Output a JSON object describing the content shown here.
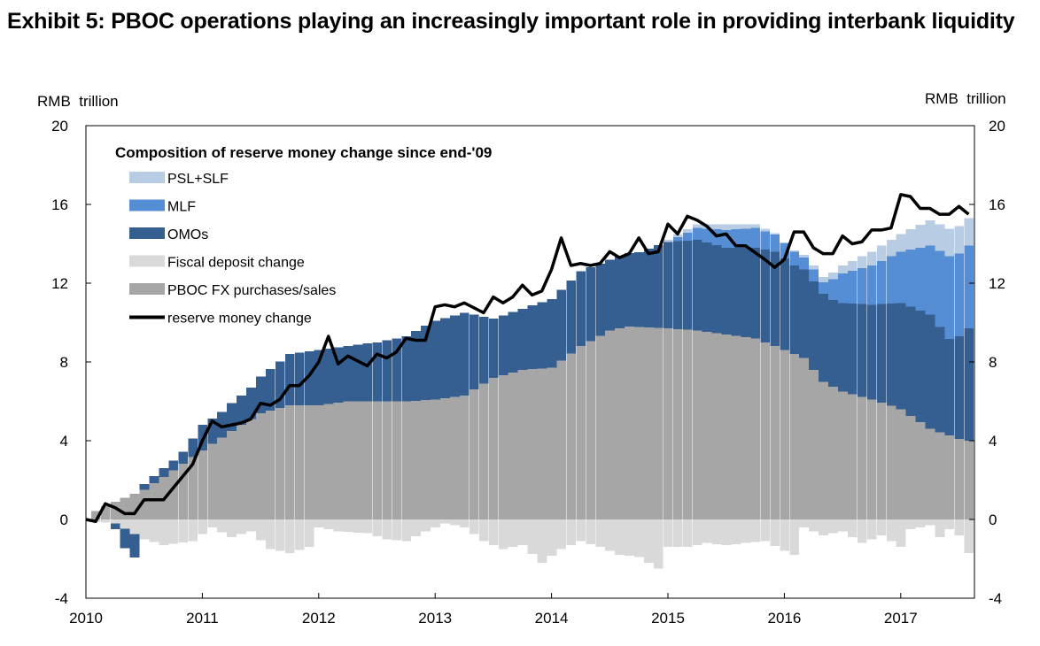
{
  "page": {
    "title": "Exhibit 5: PBOC operations playing an increasingly important role in providing interbank liquidity"
  },
  "chart_data": {
    "type": "bar",
    "stacked": true,
    "y_unit_left": "RMB  trillion",
    "y_unit_right": "RMB  trillion",
    "ylim": [
      -4,
      20
    ],
    "yticks": [
      -4,
      0,
      4,
      8,
      12,
      16,
      20
    ],
    "x_tick_labels": [
      "2010",
      "2011",
      "2012",
      "2013",
      "2014",
      "2015",
      "2016",
      "2017"
    ],
    "x_start": "2010-01",
    "frequency": "monthly",
    "legend_title": "Composition of reserve money change since end-'09",
    "legend_position": "top-left",
    "grid": false,
    "colors": {
      "psl_slf": "#b8cce4",
      "mlf": "#558ed5",
      "omo": "#355e91",
      "fiscal": "#d9d9d9",
      "fx": "#a6a6a6",
      "line": "#000000"
    },
    "legend": [
      {
        "label": "PSL+SLF",
        "key": "psl_slf",
        "kind": "bar"
      },
      {
        "label": "MLF",
        "key": "mlf",
        "kind": "bar"
      },
      {
        "label": "OMOs",
        "key": "omo",
        "kind": "bar"
      },
      {
        "label": "Fiscal deposit change",
        "key": "fiscal",
        "kind": "bar"
      },
      {
        "label": "PBOC FX purchases/sales",
        "key": "fx",
        "kind": "bar"
      },
      {
        "label": "reserve money change",
        "key": "line",
        "kind": "line"
      }
    ],
    "months": 92,
    "kp": {
      "fx": [
        [
          0,
          0.2
        ],
        [
          3,
          0.9
        ],
        [
          6,
          1.5
        ],
        [
          9,
          2.5
        ],
        [
          12,
          3.5
        ],
        [
          15,
          4.5
        ],
        [
          18,
          5.4
        ],
        [
          21,
          5.8
        ],
        [
          24,
          5.8
        ],
        [
          27,
          6.0
        ],
        [
          30,
          6.0
        ],
        [
          33,
          6.0
        ],
        [
          36,
          6.1
        ],
        [
          39,
          6.3
        ],
        [
          42,
          7.2
        ],
        [
          45,
          7.6
        ],
        [
          48,
          7.7
        ],
        [
          51,
          8.8
        ],
        [
          54,
          9.6
        ],
        [
          56,
          9.8
        ],
        [
          60,
          9.7
        ],
        [
          63,
          9.6
        ],
        [
          66,
          9.4
        ],
        [
          69,
          9.2
        ],
        [
          72,
          8.6
        ],
        [
          74,
          8.2
        ],
        [
          76,
          7.0
        ],
        [
          78,
          6.5
        ],
        [
          81,
          6.1
        ],
        [
          84,
          5.6
        ],
        [
          87,
          4.6
        ],
        [
          90,
          4.1
        ],
        [
          91,
          4.0
        ]
      ],
      "omo": [
        [
          0,
          0.0
        ],
        [
          2,
          0.0
        ],
        [
          3,
          -0.3
        ],
        [
          4,
          -1.0
        ],
        [
          5,
          -1.2
        ],
        [
          6,
          0.3
        ],
        [
          9,
          0.5
        ],
        [
          10,
          0.6
        ],
        [
          12,
          1.3
        ],
        [
          14,
          1.3
        ],
        [
          17,
          1.6
        ],
        [
          21,
          2.6
        ],
        [
          24,
          2.8
        ],
        [
          27,
          2.8
        ],
        [
          30,
          3.0
        ],
        [
          33,
          3.3
        ],
        [
          36,
          4.0
        ],
        [
          39,
          4.2
        ],
        [
          42,
          3.0
        ],
        [
          45,
          3.1
        ],
        [
          48,
          3.5
        ],
        [
          51,
          3.8
        ],
        [
          54,
          3.6
        ],
        [
          57,
          3.8
        ],
        [
          60,
          4.4
        ],
        [
          63,
          4.6
        ],
        [
          66,
          4.4
        ],
        [
          69,
          4.6
        ],
        [
          71,
          4.8
        ],
        [
          73,
          4.5
        ],
        [
          75,
          4.5
        ],
        [
          77,
          4.4
        ],
        [
          79,
          4.6
        ],
        [
          81,
          4.8
        ],
        [
          84,
          5.4
        ],
        [
          87,
          5.8
        ],
        [
          89,
          4.9
        ],
        [
          90,
          5.2
        ],
        [
          91,
          5.7
        ]
      ],
      "mlf": [
        [
          0,
          0
        ],
        [
          60,
          0
        ],
        [
          61,
          0.2
        ],
        [
          63,
          0.6
        ],
        [
          66,
          0.9
        ],
        [
          69,
          1.0
        ],
        [
          72,
          0.8
        ],
        [
          74,
          0.6
        ],
        [
          76,
          0.6
        ],
        [
          78,
          1.5
        ],
        [
          81,
          2.0
        ],
        [
          84,
          2.6
        ],
        [
          87,
          3.5
        ],
        [
          89,
          4.2
        ],
        [
          91,
          4.2
        ]
      ],
      "psl": [
        [
          0,
          0
        ],
        [
          59,
          0
        ],
        [
          60,
          0.1
        ],
        [
          63,
          0.2
        ],
        [
          66,
          0.3
        ],
        [
          69,
          0.2
        ],
        [
          72,
          0.0
        ],
        [
          75,
          0.2
        ],
        [
          78,
          0.4
        ],
        [
          81,
          0.7
        ],
        [
          84,
          0.9
        ],
        [
          87,
          1.3
        ],
        [
          89,
          1.4
        ],
        [
          91,
          1.4
        ]
      ],
      "fiscal": [
        [
          0,
          -0.1
        ],
        [
          3,
          -0.2
        ],
        [
          6,
          -1.0
        ],
        [
          8,
          -1.3
        ],
        [
          11,
          -1.1
        ],
        [
          13,
          -0.4
        ],
        [
          15,
          -0.9
        ],
        [
          17,
          -0.6
        ],
        [
          19,
          -1.5
        ],
        [
          21,
          -1.7
        ],
        [
          23,
          -1.4
        ],
        [
          24,
          -0.4
        ],
        [
          26,
          -0.6
        ],
        [
          29,
          -0.7
        ],
        [
          31,
          -1.0
        ],
        [
          33,
          -1.1
        ],
        [
          35,
          -0.6
        ],
        [
          37,
          -0.2
        ],
        [
          39,
          -0.4
        ],
        [
          41,
          -1.1
        ],
        [
          43,
          -1.5
        ],
        [
          45,
          -1.3
        ],
        [
          47,
          -2.2
        ],
        [
          49,
          -1.5
        ],
        [
          51,
          -1.1
        ],
        [
          53,
          -1.4
        ],
        [
          55,
          -1.8
        ],
        [
          57,
          -1.9
        ],
        [
          59,
          -2.5
        ],
        [
          60,
          -1.4
        ],
        [
          62,
          -1.4
        ],
        [
          64,
          -1.2
        ],
        [
          66,
          -1.3
        ],
        [
          68,
          -1.2
        ],
        [
          70,
          -1.1
        ],
        [
          72,
          -1.6
        ],
        [
          73,
          -1.8
        ],
        [
          74,
          -0.4
        ],
        [
          76,
          -0.8
        ],
        [
          78,
          -0.6
        ],
        [
          80,
          -1.2
        ],
        [
          82,
          -0.8
        ],
        [
          84,
          -1.4
        ],
        [
          85,
          -0.5
        ],
        [
          87,
          -0.3
        ],
        [
          88,
          -0.9
        ],
        [
          89,
          -0.5
        ],
        [
          90,
          -0.8
        ],
        [
          91,
          -1.7
        ]
      ],
      "line": [
        [
          0,
          0.0
        ],
        [
          1,
          -0.1
        ],
        [
          2,
          0.8
        ],
        [
          3,
          0.6
        ],
        [
          4,
          0.3
        ],
        [
          5,
          0.3
        ],
        [
          6,
          1.0
        ],
        [
          7,
          1.0
        ],
        [
          8,
          1.0
        ],
        [
          9,
          1.6
        ],
        [
          11,
          2.8
        ],
        [
          12,
          4.0
        ],
        [
          13,
          5.0
        ],
        [
          14,
          4.7
        ],
        [
          16,
          4.9
        ],
        [
          17,
          5.1
        ],
        [
          18,
          5.9
        ],
        [
          19,
          5.8
        ],
        [
          20,
          6.1
        ],
        [
          21,
          6.8
        ],
        [
          22,
          6.8
        ],
        [
          23,
          7.3
        ],
        [
          24,
          8.0
        ],
        [
          25,
          9.3
        ],
        [
          26,
          7.9
        ],
        [
          27,
          8.3
        ],
        [
          29,
          7.8
        ],
        [
          30,
          8.4
        ],
        [
          31,
          8.2
        ],
        [
          32,
          8.5
        ],
        [
          33,
          9.2
        ],
        [
          34,
          9.1
        ],
        [
          35,
          9.1
        ],
        [
          36,
          10.8
        ],
        [
          37,
          10.9
        ],
        [
          38,
          10.8
        ],
        [
          39,
          11.0
        ],
        [
          41,
          10.5
        ],
        [
          42,
          11.3
        ],
        [
          43,
          11.0
        ],
        [
          44,
          11.3
        ],
        [
          45,
          11.9
        ],
        [
          46,
          11.4
        ],
        [
          47,
          11.6
        ],
        [
          48,
          12.7
        ],
        [
          49,
          14.3
        ],
        [
          50,
          12.9
        ],
        [
          51,
          13.0
        ],
        [
          52,
          12.9
        ],
        [
          53,
          13.0
        ],
        [
          54,
          13.6
        ],
        [
          55,
          13.3
        ],
        [
          56,
          13.5
        ],
        [
          57,
          14.3
        ],
        [
          58,
          13.5
        ],
        [
          59,
          13.6
        ],
        [
          60,
          15.0
        ],
        [
          61,
          14.5
        ],
        [
          62,
          15.4
        ],
        [
          63,
          15.2
        ],
        [
          64,
          14.9
        ],
        [
          65,
          14.4
        ],
        [
          66,
          14.5
        ],
        [
          67,
          13.9
        ],
        [
          68,
          13.9
        ],
        [
          70,
          13.2
        ],
        [
          71,
          12.8
        ],
        [
          72,
          13.2
        ],
        [
          73,
          14.6
        ],
        [
          74,
          14.6
        ],
        [
          75,
          13.8
        ],
        [
          76,
          13.5
        ],
        [
          77,
          13.5
        ],
        [
          78,
          14.4
        ],
        [
          79,
          14.0
        ],
        [
          80,
          14.1
        ],
        [
          81,
          14.7
        ],
        [
          82,
          14.7
        ],
        [
          83,
          14.8
        ],
        [
          84,
          16.5
        ],
        [
          85,
          16.4
        ],
        [
          86,
          15.8
        ],
        [
          87,
          15.8
        ],
        [
          88,
          15.5
        ],
        [
          89,
          15.5
        ],
        [
          90,
          15.9
        ],
        [
          91,
          15.5
        ]
      ]
    }
  }
}
